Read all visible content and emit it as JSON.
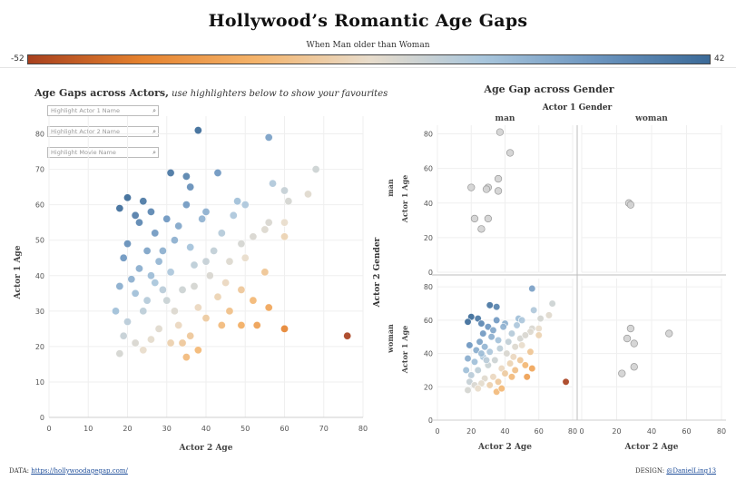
{
  "title": "Hollywood’s Romantic Age Gaps",
  "color_legend": {
    "title": "When Man older than Woman",
    "min_label": "-52",
    "max_label": "42",
    "colors": [
      "#a8401e",
      "#e5822e",
      "#f4b36a",
      "#e8dccb",
      "#a9c6dc",
      "#6c95bf",
      "#3b6a98"
    ]
  },
  "left_panel": {
    "heading_bold": "Age Gaps across Actors,",
    "heading_italic": " use highlighters below to show your favourites",
    "highlighters": [
      {
        "placeholder": "Highlight Actor 1 Name"
      },
      {
        "placeholder": "Highlight Actor 2 Name"
      },
      {
        "placeholder": "Highlight Movie Name"
      }
    ]
  },
  "right_panel": {
    "heading": "Age Gap across Gender",
    "column_header": "Actor 1 Gender",
    "row_header": "Actor 2 Gender"
  },
  "footer": {
    "data_label": "DATA:",
    "data_link": "https://hollywoodagegap.com/",
    "design_label": "DESIGN:",
    "design_handle": "@DanielLing13"
  },
  "chart_data": [
    {
      "type": "scatter",
      "title": "Age Gaps across Actors",
      "xlabel": "Actor 2 Age",
      "ylabel": "Actor 1 Age",
      "xlim": [
        0,
        80
      ],
      "ylim": [
        0,
        85
      ],
      "xticks": [
        0,
        10,
        20,
        30,
        40,
        50,
        60,
        70,
        80
      ],
      "yticks": [
        0,
        10,
        20,
        30,
        40,
        50,
        60,
        70,
        80
      ],
      "points": [
        [
          38,
          81
        ],
        [
          56,
          79
        ],
        [
          35,
          68
        ],
        [
          43,
          69
        ],
        [
          68,
          70
        ],
        [
          31,
          69
        ],
        [
          36,
          65
        ],
        [
          57,
          66
        ],
        [
          60,
          64
        ],
        [
          66,
          63
        ],
        [
          20,
          62
        ],
        [
          61,
          61
        ],
        [
          18,
          59
        ],
        [
          24,
          61
        ],
        [
          48,
          61
        ],
        [
          50,
          60
        ],
        [
          22,
          57
        ],
        [
          26,
          58
        ],
        [
          47,
          57
        ],
        [
          56,
          55
        ],
        [
          60,
          55
        ],
        [
          30,
          56
        ],
        [
          35,
          60
        ],
        [
          40,
          58
        ],
        [
          55,
          53
        ],
        [
          60,
          51
        ],
        [
          27,
          52
        ],
        [
          33,
          54
        ],
        [
          39,
          56
        ],
        [
          44,
          52
        ],
        [
          49,
          49
        ],
        [
          52,
          51
        ],
        [
          20,
          49
        ],
        [
          25,
          47
        ],
        [
          36,
          48
        ],
        [
          42,
          47
        ],
        [
          46,
          44
        ],
        [
          50,
          45
        ],
        [
          55,
          41
        ],
        [
          19,
          45
        ],
        [
          23,
          42
        ],
        [
          28,
          44
        ],
        [
          31,
          41
        ],
        [
          37,
          43
        ],
        [
          41,
          40
        ],
        [
          45,
          38
        ],
        [
          49,
          36
        ],
        [
          52,
          33
        ],
        [
          56,
          31
        ],
        [
          60,
          25
        ],
        [
          18,
          37
        ],
        [
          22,
          35
        ],
        [
          27,
          38
        ],
        [
          30,
          33
        ],
        [
          34,
          36
        ],
        [
          38,
          31
        ],
        [
          43,
          34
        ],
        [
          46,
          30
        ],
        [
          49,
          26
        ],
        [
          53,
          26
        ],
        [
          17,
          30
        ],
        [
          20,
          27
        ],
        [
          24,
          30
        ],
        [
          28,
          25
        ],
        [
          33,
          26
        ],
        [
          36,
          23
        ],
        [
          40,
          28
        ],
        [
          44,
          26
        ],
        [
          19,
          23
        ],
        [
          22,
          21
        ],
        [
          26,
          22
        ],
        [
          31,
          21
        ],
        [
          35,
          17
        ],
        [
          38,
          19
        ],
        [
          18,
          18
        ],
        [
          24,
          19
        ],
        [
          34,
          21
        ],
        [
          76,
          23
        ],
        [
          29,
          47
        ],
        [
          32,
          50
        ],
        [
          26,
          40
        ],
        [
          21,
          39
        ],
        [
          29,
          36
        ],
        [
          37,
          37
        ],
        [
          25,
          33
        ],
        [
          32,
          30
        ],
        [
          40,
          44
        ],
        [
          23,
          55
        ]
      ]
    },
    {
      "type": "scatter",
      "title": "Age Gap across Gender",
      "xlabel": "Actor 2 Age",
      "ylabel": "Actor 1 Age",
      "panels": [
        {
          "col": "man",
          "row": "man",
          "xlim": [
            0,
            80
          ],
          "ylim": [
            0,
            85
          ],
          "points": [
            [
              20,
              49
            ],
            [
              22,
              31
            ],
            [
              26,
              25
            ],
            [
              30,
              49
            ],
            [
              29,
              48
            ],
            [
              30,
              31
            ],
            [
              36,
              54
            ],
            [
              36,
              47
            ],
            [
              37,
              81
            ],
            [
              43,
              69
            ]
          ]
        },
        {
          "col": "woman",
          "row": "man",
          "xlim": [
            0,
            80
          ],
          "ylim": [
            0,
            85
          ],
          "points": [
            [
              27,
              40
            ],
            [
              28,
              39
            ]
          ]
        },
        {
          "col": "man",
          "row": "woman",
          "xlim": [
            0,
            80
          ],
          "ylim": [
            0,
            85
          ],
          "points": [
            [
              56,
              79
            ],
            [
              35,
              68
            ],
            [
              31,
              69
            ],
            [
              57,
              66
            ],
            [
              61,
              61
            ],
            [
              20,
              62
            ],
            [
              24,
              61
            ],
            [
              18,
              59
            ],
            [
              26,
              58
            ],
            [
              47,
              57
            ],
            [
              56,
              55
            ],
            [
              60,
              55
            ],
            [
              30,
              56
            ],
            [
              35,
              60
            ],
            [
              40,
              58
            ],
            [
              55,
              53
            ],
            [
              60,
              51
            ],
            [
              27,
              52
            ],
            [
              33,
              54
            ],
            [
              44,
              52
            ],
            [
              49,
              49
            ],
            [
              52,
              51
            ],
            [
              25,
              47
            ],
            [
              36,
              48
            ],
            [
              42,
              47
            ],
            [
              46,
              44
            ],
            [
              50,
              45
            ],
            [
              55,
              41
            ],
            [
              19,
              45
            ],
            [
              23,
              42
            ],
            [
              28,
              44
            ],
            [
              31,
              41
            ],
            [
              37,
              43
            ],
            [
              41,
              40
            ],
            [
              45,
              38
            ],
            [
              49,
              36
            ],
            [
              52,
              33
            ],
            [
              56,
              31
            ],
            [
              18,
              37
            ],
            [
              22,
              35
            ],
            [
              27,
              38
            ],
            [
              30,
              33
            ],
            [
              34,
              36
            ],
            [
              38,
              31
            ],
            [
              43,
              34
            ],
            [
              46,
              30
            ],
            [
              53,
              26
            ],
            [
              17,
              30
            ],
            [
              20,
              27
            ],
            [
              24,
              30
            ],
            [
              28,
              25
            ],
            [
              33,
              26
            ],
            [
              36,
              23
            ],
            [
              40,
              28
            ],
            [
              44,
              26
            ],
            [
              19,
              23
            ],
            [
              22,
              21
            ],
            [
              26,
              22
            ],
            [
              31,
              21
            ],
            [
              35,
              17
            ],
            [
              38,
              19
            ],
            [
              18,
              18
            ],
            [
              24,
              19
            ],
            [
              76,
              23
            ],
            [
              68,
              70
            ],
            [
              66,
              63
            ],
            [
              48,
              61
            ],
            [
              50,
              60
            ],
            [
              39,
              56
            ],
            [
              32,
              50
            ],
            [
              26,
              40
            ],
            [
              29,
              36
            ]
          ]
        },
        {
          "col": "woman",
          "row": "woman",
          "xlim": [
            0,
            80
          ],
          "ylim": [
            0,
            85
          ],
          "points": [
            [
              23,
              28
            ],
            [
              26,
              49
            ],
            [
              28,
              55
            ],
            [
              30,
              46
            ],
            [
              30,
              32
            ],
            [
              50,
              52
            ]
          ]
        }
      ],
      "column_values": [
        "man",
        "woman"
      ],
      "row_values": [
        "man",
        "woman"
      ],
      "xticks": [
        0,
        20,
        40,
        60,
        80
      ],
      "yticks": [
        0,
        20,
        40,
        60,
        80
      ]
    }
  ]
}
